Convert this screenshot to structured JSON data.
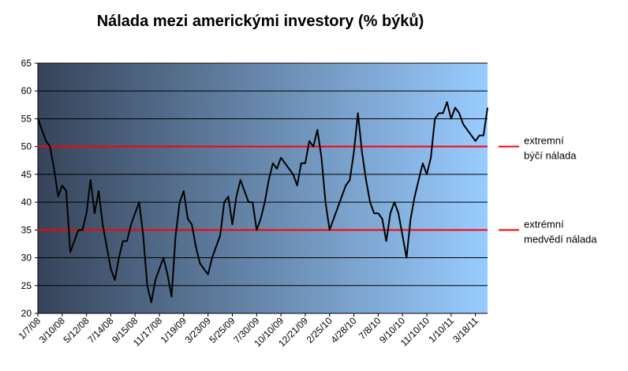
{
  "chart_data": {
    "type": "line",
    "title": "Nálada mezi americkými investory (% býků)",
    "categories": [
      "1/7/08",
      null,
      null,
      null,
      null,
      null,
      "3/10/08",
      null,
      null,
      null,
      null,
      null,
      "5/12/08",
      null,
      null,
      null,
      null,
      null,
      "7/14/08",
      null,
      null,
      null,
      null,
      null,
      "9/15/08",
      null,
      null,
      null,
      null,
      null,
      "11/17/08",
      null,
      null,
      null,
      null,
      null,
      "1/19/09",
      null,
      null,
      null,
      null,
      null,
      "3/23/09",
      null,
      null,
      null,
      null,
      null,
      "5/25/09",
      null,
      null,
      null,
      null,
      null,
      "7/30/09",
      null,
      null,
      null,
      null,
      null,
      "10/10/09",
      null,
      null,
      null,
      null,
      null,
      "12/21/09",
      null,
      null,
      null,
      null,
      null,
      "2/25/10",
      null,
      null,
      null,
      null,
      null,
      "4/28/10",
      null,
      null,
      null,
      null,
      null,
      "7/8/10",
      null,
      null,
      null,
      null,
      null,
      "9/10/10",
      null,
      null,
      null,
      null,
      null,
      "11/10/10",
      null,
      null,
      null,
      null,
      null,
      "1/10/11",
      null,
      null,
      null,
      null,
      null,
      "3/18/11",
      null,
      null,
      null
    ],
    "series": [
      {
        "color": "#000000",
        "values": [
          55,
          53,
          51,
          50,
          46,
          41,
          43,
          42,
          31,
          33,
          35,
          35,
          38,
          44,
          38,
          42,
          36,
          32,
          28,
          26,
          30,
          33,
          33,
          36,
          38,
          40,
          34,
          25,
          22,
          26,
          28,
          30,
          27,
          23,
          34,
          40,
          42,
          37,
          36,
          32,
          29,
          28,
          27,
          30,
          32,
          34,
          40,
          41,
          36,
          41,
          44,
          42,
          40,
          40,
          35,
          37,
          40,
          44,
          47,
          46,
          48,
          47,
          46,
          45,
          43,
          47,
          47,
          51,
          50,
          53,
          48,
          40,
          35,
          37,
          39,
          41,
          43,
          44,
          49,
          56,
          49,
          44,
          40,
          38,
          38,
          37,
          33,
          38,
          40,
          38,
          34,
          30,
          37,
          41,
          44,
          47,
          45,
          48,
          55,
          56,
          56,
          58,
          55,
          57,
          56,
          54,
          53,
          52,
          51,
          52,
          52,
          57
        ]
      }
    ],
    "ylim": [
      20,
      65
    ],
    "yticks": [
      20,
      25,
      30,
      35,
      40,
      45,
      50,
      55,
      60,
      65
    ],
    "grid": true,
    "background": [
      "#36445a",
      "#99ccff"
    ],
    "reference_lines": [
      {
        "value": 50,
        "color": "#ff0000",
        "label": [
          "extremní",
          "býčí nálada"
        ]
      },
      {
        "value": 35,
        "color": "#ff0000",
        "label": [
          "extrémní",
          "medvědí nálada"
        ]
      }
    ]
  }
}
